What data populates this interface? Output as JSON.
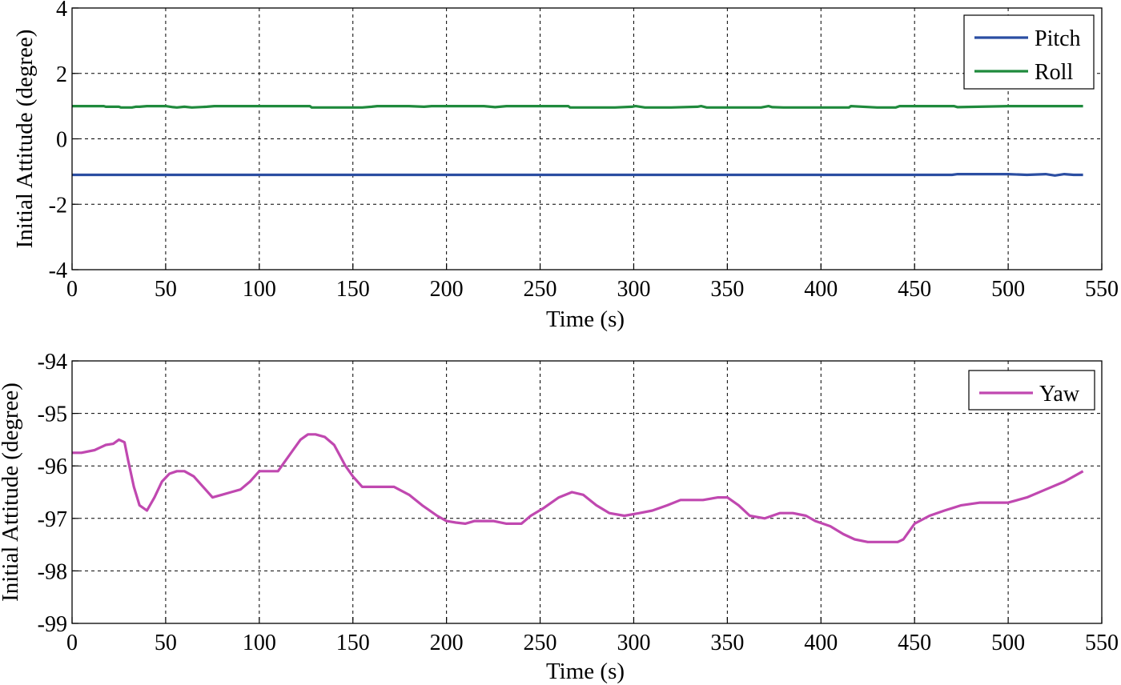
{
  "colors": {
    "pitch": "#2b4ea2",
    "roll": "#1f8a3c",
    "yaw": "#c048b0",
    "grid": "#000000",
    "background": "#ffffff"
  },
  "chart_data": [
    {
      "type": "line",
      "xlabel": "Time (s)",
      "ylabel": "Initial Attitude (degree)",
      "xlim": [
        0,
        550
      ],
      "ylim": [
        -4,
        4
      ],
      "xticks": [
        0,
        50,
        100,
        150,
        200,
        250,
        300,
        350,
        400,
        450,
        500,
        550
      ],
      "yticks": [
        -4,
        -2,
        0,
        2,
        4
      ],
      "grid": "dashed",
      "legend_position": "top-right",
      "series": [
        {
          "name": "Pitch",
          "color_key": "pitch",
          "x": [
            0,
            100,
            200,
            300,
            400,
            470,
            473,
            480,
            500,
            510,
            520,
            525,
            530,
            535,
            540
          ],
          "y": [
            -1.1,
            -1.1,
            -1.1,
            -1.1,
            -1.1,
            -1.1,
            -1.08,
            -1.08,
            -1.08,
            -1.1,
            -1.08,
            -1.12,
            -1.08,
            -1.1,
            -1.1
          ]
        },
        {
          "name": "Roll",
          "color_key": "roll",
          "x": [
            0,
            17,
            18,
            25,
            26,
            32,
            34,
            36,
            40,
            50,
            54,
            56,
            60,
            64,
            72,
            76,
            90,
            110,
            127,
            128,
            150,
            155,
            160,
            163,
            170,
            180,
            188,
            192,
            200,
            220,
            226,
            232,
            240,
            260,
            265,
            266,
            290,
            299,
            301,
            306,
            320,
            334,
            336,
            339,
            350,
            368,
            372,
            374,
            380,
            400,
            415,
            416,
            430,
            440,
            442,
            450,
            471,
            473,
            500,
            540
          ],
          "y": [
            1.0,
            1.0,
            0.98,
            0.98,
            0.96,
            0.96,
            0.98,
            0.98,
            1.0,
            1.0,
            0.97,
            0.96,
            0.98,
            0.96,
            0.98,
            1.0,
            1.0,
            1.0,
            1.0,
            0.96,
            0.96,
            0.96,
            0.98,
            1.0,
            1.0,
            1.0,
            0.98,
            1.0,
            1.0,
            1.0,
            0.97,
            1.0,
            1.0,
            1.0,
            1.0,
            0.96,
            0.96,
            0.98,
            1.0,
            0.96,
            0.96,
            0.98,
            1.0,
            0.96,
            0.96,
            0.96,
            1.0,
            0.97,
            0.96,
            0.96,
            0.96,
            1.0,
            0.96,
            0.96,
            1.0,
            1.0,
            1.0,
            0.97,
            1.0,
            1.0
          ]
        }
      ]
    },
    {
      "type": "line",
      "xlabel": "Time (s)",
      "ylabel": "Initial Attitude (degree)",
      "xlim": [
        0,
        550
      ],
      "ylim": [
        -99,
        -94
      ],
      "xticks": [
        0,
        50,
        100,
        150,
        200,
        250,
        300,
        350,
        400,
        450,
        500,
        550
      ],
      "yticks": [
        -99,
        -98,
        -97,
        -96,
        -95,
        -94
      ],
      "grid": "dashed",
      "legend_position": "top-right",
      "series": [
        {
          "name": "Yaw",
          "color_key": "yaw",
          "x": [
            0,
            5,
            12,
            18,
            22,
            25,
            28,
            30,
            33,
            36,
            40,
            44,
            48,
            52,
            56,
            60,
            65,
            70,
            75,
            80,
            85,
            90,
            95,
            100,
            110,
            113,
            118,
            122,
            126,
            130,
            135,
            140,
            143,
            146,
            150,
            155,
            165,
            172,
            180,
            187,
            195,
            200,
            205,
            210,
            215,
            225,
            232,
            240,
            245,
            252,
            260,
            267,
            273,
            280,
            287,
            295,
            303,
            310,
            318,
            325,
            337,
            345,
            350,
            356,
            362,
            370,
            378,
            385,
            392,
            397,
            405,
            412,
            418,
            425,
            432,
            438,
            441,
            444,
            450,
            458,
            466,
            475,
            485,
            500,
            510,
            520,
            530,
            540
          ],
          "y": [
            -95.75,
            -95.75,
            -95.7,
            -95.6,
            -95.58,
            -95.5,
            -95.55,
            -95.9,
            -96.4,
            -96.75,
            -96.85,
            -96.6,
            -96.3,
            -96.15,
            -96.1,
            -96.1,
            -96.2,
            -96.4,
            -96.6,
            -96.55,
            -96.5,
            -96.45,
            -96.3,
            -96.1,
            -96.1,
            -95.95,
            -95.7,
            -95.5,
            -95.4,
            -95.4,
            -95.45,
            -95.6,
            -95.8,
            -96.0,
            -96.2,
            -96.4,
            -96.4,
            -96.4,
            -96.55,
            -96.75,
            -96.95,
            -97.05,
            -97.08,
            -97.1,
            -97.05,
            -97.05,
            -97.1,
            -97.1,
            -96.95,
            -96.8,
            -96.6,
            -96.5,
            -96.55,
            -96.75,
            -96.9,
            -96.95,
            -96.9,
            -96.85,
            -96.75,
            -96.65,
            -96.65,
            -96.6,
            -96.6,
            -96.75,
            -96.95,
            -97.0,
            -96.9,
            -96.9,
            -96.95,
            -97.05,
            -97.15,
            -97.3,
            -97.4,
            -97.45,
            -97.45,
            -97.45,
            -97.45,
            -97.4,
            -97.1,
            -96.95,
            -96.85,
            -96.75,
            -96.7,
            -96.7,
            -96.6,
            -96.45,
            -96.3,
            -96.1
          ]
        }
      ]
    }
  ]
}
